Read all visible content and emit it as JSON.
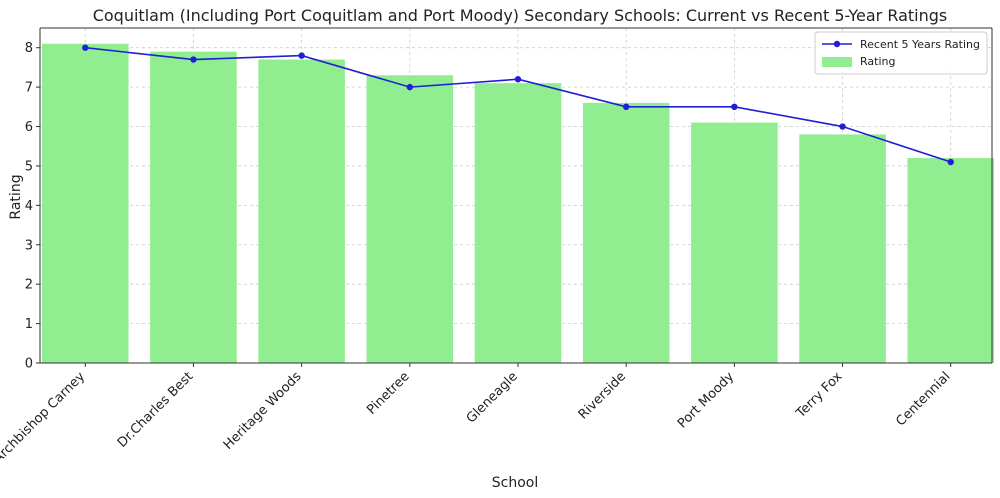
{
  "chart_data": {
    "type": "bar",
    "title": "Coquitlam (Including Port Coquitlam and Port Moody) Secondary Schools: Current vs Recent 5-Year Ratings",
    "xlabel": "School",
    "ylabel": "Rating",
    "ylim": [
      0,
      8.5
    ],
    "yticks": [
      0,
      1,
      2,
      3,
      4,
      5,
      6,
      7,
      8
    ],
    "grid": true,
    "legend_position": "top-right",
    "categories": [
      "Archbishop Carney",
      "Dr.Charles Best",
      "Heritage Woods",
      "Pinetree",
      "Gleneagle",
      "Riverside",
      "Port Moody",
      "Terry Fox",
      "Centennial"
    ],
    "series": [
      {
        "name": "Rating",
        "type": "bar",
        "color": "#90ee90",
        "values": [
          8.1,
          7.9,
          7.7,
          7.3,
          7.1,
          6.6,
          6.1,
          5.8,
          5.2
        ]
      },
      {
        "name": "Recent 5 Years Rating",
        "type": "line",
        "color": "#1f1fd6",
        "values": [
          8.0,
          7.7,
          7.8,
          7.0,
          7.2,
          6.5,
          6.5,
          6.0,
          5.1
        ]
      }
    ]
  }
}
